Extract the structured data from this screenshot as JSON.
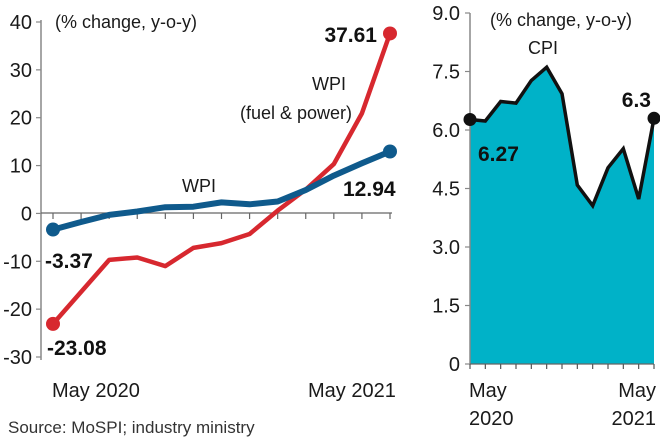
{
  "chart_data": [
    {
      "type": "line",
      "title": "",
      "note": "(% change, y-o-y)",
      "xlabel": "",
      "ylabel": "",
      "ylim": [
        -30,
        40
      ],
      "yticks": [
        40,
        30,
        20,
        10,
        0,
        -10,
        -20,
        -30
      ],
      "ytick_labels": [
        "40",
        "30",
        "20",
        "10",
        "0",
        "-10",
        "-20",
        "-30"
      ],
      "x": [
        "May 2020",
        "Jun 2020",
        "Jul 2020",
        "Aug 2020",
        "Sep 2020",
        "Oct 2020",
        "Nov 2020",
        "Dec 2020",
        "Jan 2021",
        "Feb 2021",
        "Mar 2021",
        "Apr 2021",
        "May 2021"
      ],
      "xtick_labels": [
        "May 2020",
        "May 2021"
      ],
      "series": [
        {
          "name": "WPI",
          "color": "#0f5a8c",
          "values": [
            -3.37,
            -1.8,
            -0.3,
            0.4,
            1.3,
            1.4,
            2.3,
            1.9,
            2.5,
            4.9,
            7.9,
            10.5,
            12.94
          ],
          "start_label": "-3.37",
          "end_label": "12.94"
        },
        {
          "name": "WPI (fuel & power)",
          "name_line1": "WPI",
          "name_line2": "(fuel & power)",
          "color": "#d7282f",
          "values": [
            -23.08,
            -16.4,
            -9.7,
            -9.2,
            -11.0,
            -7.2,
            -6.2,
            -4.3,
            0.6,
            5.0,
            10.3,
            20.9,
            37.61
          ],
          "start_label": "-23.08",
          "end_label": "37.61"
        }
      ],
      "grid": false
    },
    {
      "type": "area",
      "title": "",
      "note": "(% change, y-o-y)",
      "ylim": [
        0,
        9.0
      ],
      "yticks": [
        9.0,
        7.5,
        6.0,
        4.5,
        3.0,
        1.5,
        0
      ],
      "ytick_labels": [
        "9.0",
        "7.5",
        "6.0",
        "4.5",
        "3.0",
        "1.5",
        "0"
      ],
      "x": [
        "May 2020",
        "Jun 2020",
        "Jul 2020",
        "Aug 2020",
        "Sep 2020",
        "Oct 2020",
        "Nov 2020",
        "Dec 2020",
        "Jan 2021",
        "Feb 2021",
        "Mar 2021",
        "Apr 2021",
        "May 2021"
      ],
      "xtick_labels": [
        [
          "May",
          "2020"
        ],
        [
          "May",
          "2021"
        ]
      ],
      "series": [
        {
          "name": "CPI",
          "fill_color": "#00b2c8",
          "line_color": "#111111",
          "values": [
            6.27,
            6.23,
            6.73,
            6.69,
            7.27,
            7.61,
            6.93,
            4.59,
            4.06,
            5.03,
            5.52,
            4.23,
            6.3
          ],
          "start_label": "6.27",
          "end_label": "6.3"
        }
      ],
      "grid": false
    }
  ],
  "source": "Source: MoSPI; industry ministry"
}
